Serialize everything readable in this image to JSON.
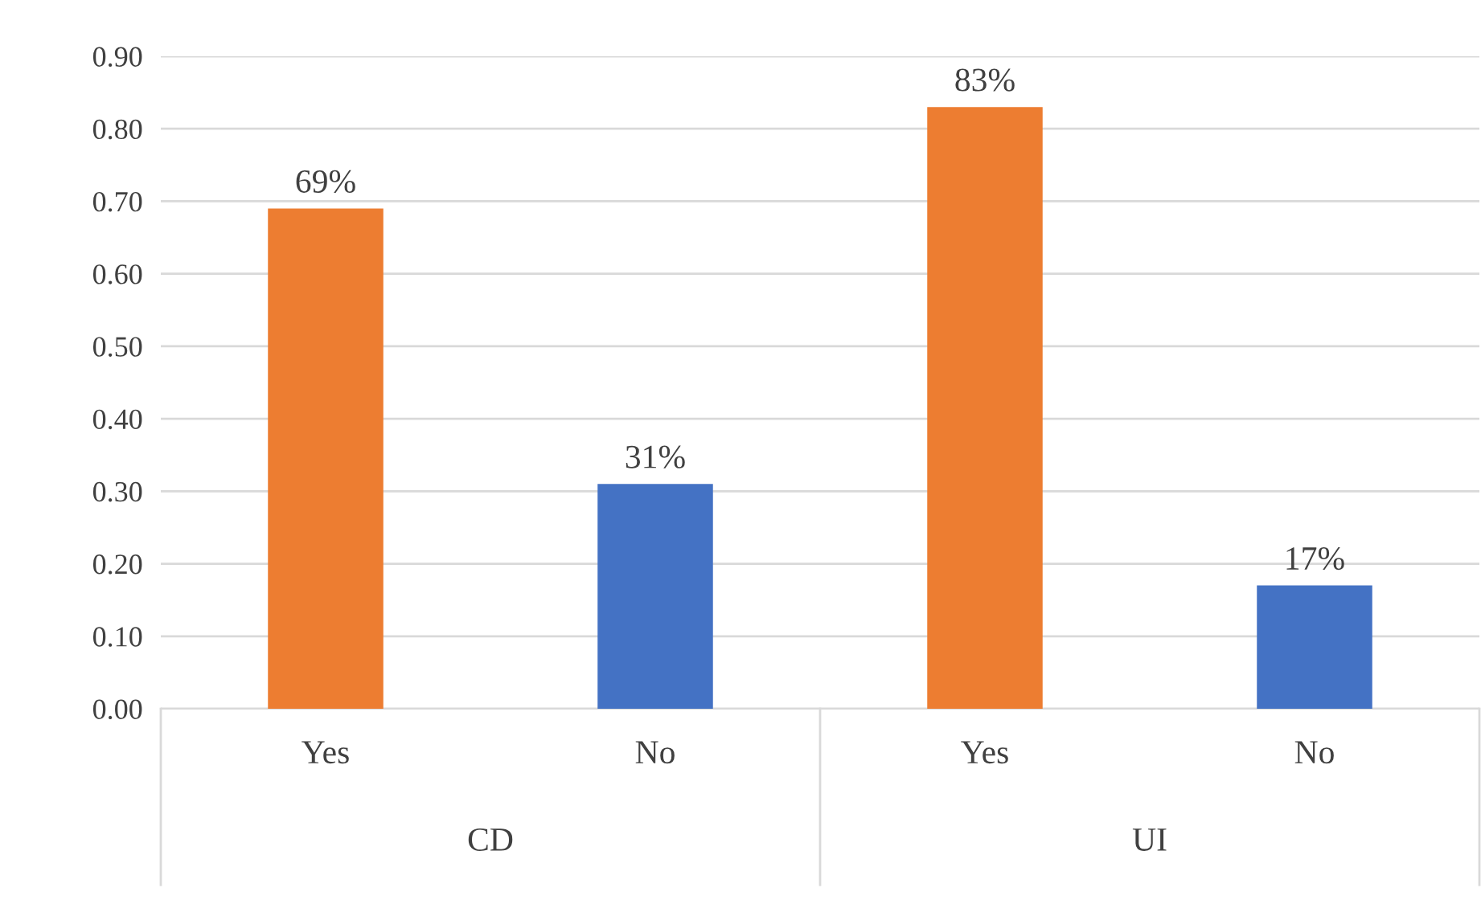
{
  "chart_data": {
    "type": "bar",
    "categories": [
      "Yes",
      "No",
      "Yes",
      "No"
    ],
    "values": [
      0.69,
      0.31,
      0.83,
      0.17
    ],
    "colors": [
      "#ed7d31",
      "#4472c4",
      "#ed7d31",
      "#4472c4"
    ],
    "value_labels": [
      "69%",
      "31%",
      "83%",
      "17%"
    ],
    "annotations": [
      "CD",
      "UI"
    ],
    "ylim": [
      0,
      0.9
    ],
    "yticks": [
      {
        "value": 0,
        "label": "0.00"
      },
      {
        "value": 0.1,
        "label": "0.10"
      },
      {
        "value": 0.2,
        "label": "0.20"
      },
      {
        "value": 0.3,
        "label": "0.30"
      },
      {
        "value": 0.4,
        "label": "0.40"
      },
      {
        "value": 0.5,
        "label": "0.50"
      },
      {
        "value": 0.6,
        "label": "0.60"
      },
      {
        "value": 0.7,
        "label": "0.70"
      },
      {
        "value": 0.8,
        "label": "0.80"
      },
      {
        "value": 0.9,
        "label": "0.90"
      }
    ],
    "grid": "y",
    "legend": false
  }
}
